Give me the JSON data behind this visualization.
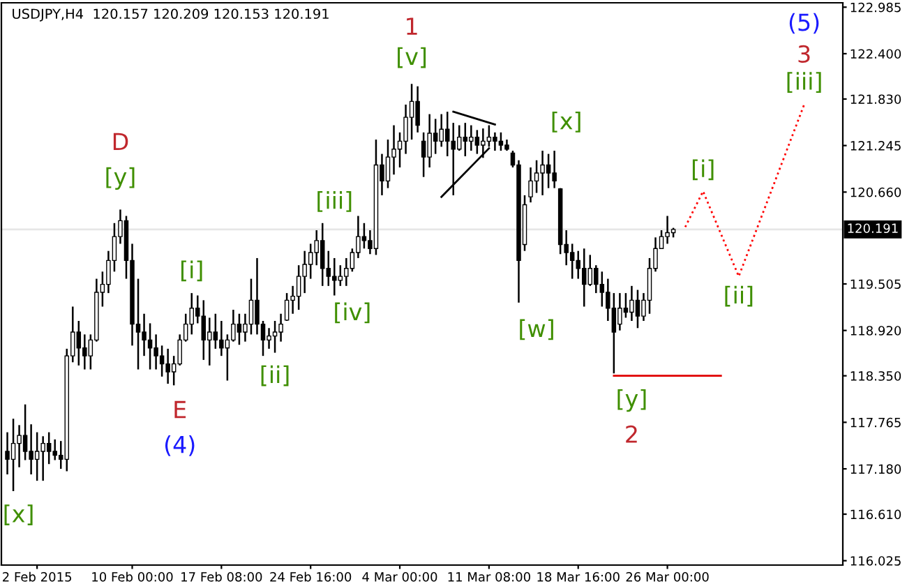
{
  "chart_data": {
    "type": "candlestick",
    "title": "USDJPY,H4  120.157 120.209 120.153 120.191",
    "categories": [
      null,
      null,
      null,
      null,
      null,
      "2 Feb 2015",
      null,
      null,
      null,
      null,
      null,
      null,
      null,
      null,
      null,
      null,
      null,
      null,
      null,
      null,
      null,
      "10 Feb 00:00",
      null,
      null,
      null,
      null,
      null,
      null,
      null,
      null,
      null,
      null,
      null,
      null,
      null,
      null,
      "17 Feb 08:00",
      null,
      null,
      null,
      null,
      null,
      null,
      null,
      null,
      null,
      null,
      null,
      null,
      null,
      null,
      "24 Feb 16:00",
      null,
      null,
      null,
      null,
      null,
      null,
      null,
      null,
      null,
      null,
      null,
      null,
      null,
      null,
      "4 Mar 00:00",
      null,
      null,
      null,
      null,
      null,
      null,
      null,
      null,
      null,
      null,
      null,
      null,
      null,
      null,
      "11 Mar 08:00",
      null,
      null,
      null,
      null,
      null,
      null,
      null,
      null,
      null,
      null,
      null,
      null,
      null,
      null,
      "18 Mar 16:00",
      null,
      null,
      null,
      null,
      null,
      null,
      null,
      null,
      null,
      null,
      null,
      null,
      null,
      null,
      "26 Mar 00:00",
      null,
      null,
      null,
      null,
      null,
      null,
      null,
      null,
      null,
      null,
      null,
      null,
      null,
      null,
      null,
      null,
      null,
      null,
      null,
      null,
      null,
      null,
      null,
      null,
      null,
      null,
      null,
      null,
      null
    ],
    "ohlc": [
      [
        117.4,
        117.64,
        117.11,
        117.3
      ],
      [
        117.3,
        117.81,
        116.9,
        117.5
      ],
      [
        117.5,
        117.73,
        117.2,
        117.6
      ],
      [
        117.6,
        117.99,
        117.29,
        117.4
      ],
      [
        117.4,
        117.74,
        117.11,
        117.3
      ],
      [
        117.3,
        117.64,
        117.03,
        117.4
      ],
      [
        117.4,
        117.59,
        117.03,
        117.5
      ],
      [
        117.5,
        117.64,
        117.24,
        117.4
      ],
      [
        117.4,
        117.55,
        117.29,
        117.35
      ],
      [
        117.35,
        117.53,
        117.18,
        117.3
      ],
      [
        117.3,
        118.69,
        117.15,
        118.6
      ],
      [
        118.6,
        119.22,
        118.52,
        118.9
      ],
      [
        118.9,
        119.04,
        118.48,
        118.7
      ],
      [
        118.7,
        118.87,
        118.43,
        118.6
      ],
      [
        118.6,
        118.87,
        118.43,
        118.8
      ],
      [
        118.8,
        119.57,
        118.78,
        119.4
      ],
      [
        119.4,
        119.66,
        119.22,
        119.5
      ],
      [
        119.5,
        119.92,
        119.39,
        119.8
      ],
      [
        119.8,
        120.27,
        119.66,
        120.1
      ],
      [
        120.1,
        120.44,
        120.01,
        120.3
      ],
      [
        120.3,
        120.36,
        119.57,
        119.8
      ],
      [
        119.8,
        120.01,
        118.73,
        119.0
      ],
      [
        119.0,
        119.57,
        118.43,
        118.9
      ],
      [
        118.9,
        119.13,
        118.6,
        118.8
      ],
      [
        118.8,
        119.01,
        118.43,
        118.7
      ],
      [
        118.7,
        118.87,
        118.43,
        118.6
      ],
      [
        118.6,
        118.73,
        118.34,
        118.5
      ],
      [
        118.5,
        118.69,
        118.25,
        118.4
      ],
      [
        118.4,
        118.6,
        118.23,
        118.5
      ],
      [
        118.5,
        118.87,
        118.48,
        118.8
      ],
      [
        118.8,
        119.13,
        118.78,
        119.0
      ],
      [
        119.0,
        119.39,
        118.87,
        119.2
      ],
      [
        119.2,
        119.36,
        119.01,
        119.1
      ],
      [
        119.1,
        119.3,
        118.55,
        118.8
      ],
      [
        118.8,
        119.08,
        118.48,
        118.9
      ],
      [
        118.9,
        119.13,
        118.69,
        118.8
      ],
      [
        118.8,
        119.04,
        118.6,
        118.7
      ],
      [
        118.7,
        118.87,
        118.29,
        118.8
      ],
      [
        118.8,
        119.18,
        118.78,
        119.0
      ],
      [
        119.0,
        119.13,
        118.74,
        118.9
      ],
      [
        118.9,
        119.13,
        118.78,
        119.0
      ],
      [
        119.0,
        119.57,
        118.87,
        119.3
      ],
      [
        119.3,
        119.83,
        118.87,
        119.0
      ],
      [
        119.0,
        119.04,
        118.6,
        118.8
      ],
      [
        118.8,
        118.95,
        118.69,
        118.85
      ],
      [
        118.85,
        119.04,
        118.64,
        118.9
      ],
      [
        118.9,
        119.13,
        118.78,
        119.0
      ],
      [
        119.05,
        119.39,
        119.04,
        119.3
      ],
      [
        119.3,
        119.48,
        119.13,
        119.35
      ],
      [
        119.35,
        119.74,
        119.18,
        119.6
      ],
      [
        119.6,
        119.92,
        119.39,
        119.75
      ],
      [
        119.75,
        120.01,
        119.57,
        119.9
      ],
      [
        119.9,
        120.18,
        119.74,
        120.05
      ],
      [
        120.05,
        120.27,
        119.48,
        119.7
      ],
      [
        119.7,
        119.92,
        119.48,
        119.6
      ],
      [
        119.6,
        119.83,
        119.36,
        119.55
      ],
      [
        119.55,
        119.74,
        119.48,
        119.6
      ],
      [
        119.6,
        119.83,
        119.48,
        119.7
      ],
      [
        119.7,
        119.95,
        119.66,
        119.9
      ],
      [
        119.9,
        120.36,
        119.83,
        120.1
      ],
      [
        120.1,
        120.27,
        119.95,
        120.05
      ],
      [
        120.05,
        120.18,
        119.88,
        119.95
      ],
      [
        119.95,
        121.32,
        119.87,
        121.0
      ],
      [
        121.0,
        121.14,
        120.62,
        120.8
      ],
      [
        120.8,
        121.32,
        120.71,
        121.1
      ],
      [
        121.1,
        121.5,
        120.88,
        121.2
      ],
      [
        121.2,
        121.41,
        120.97,
        121.3
      ],
      [
        121.3,
        121.76,
        121.14,
        121.6
      ],
      [
        121.6,
        122.02,
        121.32,
        121.8
      ],
      [
        121.8,
        121.99,
        121.41,
        121.5
      ],
      [
        121.3,
        121.41,
        120.85,
        121.1
      ],
      [
        121.1,
        121.64,
        120.97,
        121.4
      ],
      [
        121.4,
        121.58,
        121.14,
        121.3
      ],
      [
        121.3,
        121.64,
        121.23,
        121.45
      ],
      [
        121.45,
        121.67,
        121.11,
        121.3
      ],
      [
        121.3,
        121.53,
        120.62,
        121.2
      ],
      [
        121.2,
        121.5,
        121.18,
        121.35
      ],
      [
        121.35,
        121.53,
        121.11,
        121.3
      ],
      [
        121.3,
        121.5,
        121.18,
        121.35
      ],
      [
        121.35,
        121.44,
        121.14,
        121.25
      ],
      [
        121.25,
        121.46,
        121.09,
        121.3
      ],
      [
        121.3,
        121.5,
        121.23,
        121.35
      ],
      [
        121.35,
        121.41,
        121.18,
        121.3
      ],
      [
        121.3,
        121.41,
        121.18,
        121.25
      ],
      [
        121.25,
        121.32,
        121.18,
        121.2
      ],
      [
        121.15,
        121.18,
        120.97,
        121.0
      ],
      [
        121.0,
        121.06,
        119.27,
        119.8
      ],
      [
        120.0,
        120.62,
        119.92,
        120.5
      ],
      [
        120.6,
        120.97,
        120.53,
        120.8
      ],
      [
        120.8,
        121.06,
        120.65,
        120.9
      ],
      [
        120.9,
        121.18,
        120.62,
        121.0
      ],
      [
        121.0,
        121.14,
        120.71,
        120.9
      ],
      [
        120.9,
        121.18,
        120.71,
        120.8
      ],
      [
        120.7,
        120.71,
        119.88,
        120.0
      ],
      [
        120.0,
        120.18,
        119.74,
        119.9
      ],
      [
        119.9,
        120.01,
        119.57,
        119.8
      ],
      [
        119.8,
        119.92,
        119.57,
        119.7
      ],
      [
        119.7,
        119.95,
        119.22,
        119.5
      ],
      [
        119.5,
        119.87,
        119.48,
        119.7
      ],
      [
        119.7,
        119.74,
        119.39,
        119.5
      ],
      [
        119.5,
        119.66,
        119.22,
        119.4
      ],
      [
        119.4,
        119.57,
        119.04,
        119.2
      ],
      [
        119.2,
        119.39,
        118.38,
        118.9
      ],
      [
        119.0,
        119.39,
        118.92,
        119.2
      ],
      [
        119.2,
        119.39,
        119.08,
        119.15
      ],
      [
        119.15,
        119.48,
        119.04,
        119.3
      ],
      [
        119.3,
        119.43,
        118.95,
        119.1
      ],
      [
        119.1,
        119.39,
        119.04,
        119.3
      ],
      [
        119.3,
        119.83,
        119.13,
        119.7
      ],
      [
        119.7,
        120.09,
        119.66,
        119.95
      ],
      [
        119.95,
        120.18,
        119.95,
        120.1
      ],
      [
        120.1,
        120.36,
        120.01,
        120.15
      ],
      [
        120.15,
        120.21,
        120.09,
        120.19
      ],
      null,
      null,
      null,
      null,
      null,
      null,
      null,
      null,
      null,
      null,
      null,
      null,
      null,
      null,
      null,
      null,
      null,
      null,
      null,
      null,
      null,
      null,
      null,
      null,
      null,
      null,
      null,
      null
    ],
    "series": [
      {
        "type": "line",
        "color": "#ff0000",
        "line_style": "dotted",
        "values": [
          null,
          null,
          null,
          null,
          null,
          null,
          null,
          null,
          null,
          null,
          null,
          null,
          null,
          null,
          null,
          null,
          null,
          null,
          null,
          null,
          null,
          null,
          null,
          null,
          null,
          null,
          null,
          null,
          null,
          null,
          null,
          null,
          null,
          null,
          null,
          null,
          null,
          null,
          null,
          null,
          null,
          null,
          null,
          null,
          null,
          null,
          null,
          null,
          null,
          null,
          null,
          null,
          null,
          null,
          null,
          null,
          null,
          null,
          null,
          null,
          null,
          null,
          null,
          null,
          null,
          null,
          null,
          null,
          null,
          null,
          null,
          null,
          null,
          null,
          null,
          null,
          null,
          null,
          null,
          null,
          null,
          null,
          null,
          null,
          null,
          null,
          null,
          null,
          null,
          null,
          null,
          null,
          null,
          null,
          null,
          null,
          null,
          null,
          null,
          null,
          null,
          null,
          null,
          null,
          null,
          null,
          null,
          null,
          null,
          null,
          null,
          null,
          null,
          null,
          120.22,
          null,
          null,
          120.67,
          null,
          null,
          null,
          null,
          null,
          119.6,
          null,
          null,
          null,
          null,
          null,
          null,
          null,
          null,
          null,
          null,
          121.76,
          null,
          null,
          null,
          null,
          null,
          null
        ]
      },
      {
        "type": "line",
        "color": "#000000",
        "line_style": "solid",
        "values": [
          null,
          null,
          null,
          null,
          null,
          null,
          null,
          null,
          null,
          null,
          null,
          null,
          null,
          null,
          null,
          null,
          null,
          null,
          null,
          null,
          null,
          null,
          null,
          null,
          null,
          null,
          null,
          null,
          null,
          null,
          null,
          null,
          null,
          null,
          null,
          null,
          null,
          null,
          null,
          null,
          null,
          null,
          null,
          null,
          null,
          null,
          null,
          null,
          null,
          null,
          null,
          null,
          null,
          null,
          null,
          null,
          null,
          null,
          null,
          null,
          null,
          null,
          null,
          null,
          null,
          null,
          null,
          null,
          null,
          null,
          null,
          null,
          null,
          null,
          null,
          121.67,
          null,
          null,
          null,
          null,
          null,
          null,
          121.51,
          null,
          null,
          null,
          null,
          null,
          null,
          null,
          null,
          null,
          null,
          null,
          null,
          null,
          null,
          null,
          null,
          null,
          null,
          null,
          null,
          null,
          null,
          null,
          null,
          null,
          null,
          null,
          null,
          null,
          null,
          null,
          null,
          null,
          null,
          null,
          null,
          null,
          null,
          null,
          null,
          null,
          null,
          null,
          null,
          null,
          null,
          null,
          null,
          null,
          null,
          null,
          null,
          null,
          null,
          null,
          null,
          null,
          null
        ]
      },
      {
        "type": "line",
        "color": "#000000",
        "line_style": "solid",
        "values": [
          null,
          null,
          null,
          null,
          null,
          null,
          null,
          null,
          null,
          null,
          null,
          null,
          null,
          null,
          null,
          null,
          null,
          null,
          null,
          null,
          null,
          null,
          null,
          null,
          null,
          null,
          null,
          null,
          null,
          null,
          null,
          null,
          null,
          null,
          null,
          null,
          null,
          null,
          null,
          null,
          null,
          null,
          null,
          null,
          null,
          null,
          null,
          null,
          null,
          null,
          null,
          null,
          null,
          null,
          null,
          null,
          null,
          null,
          null,
          null,
          null,
          null,
          null,
          null,
          null,
          null,
          null,
          null,
          null,
          null,
          null,
          null,
          null,
          120.6,
          null,
          null,
          null,
          null,
          null,
          null,
          null,
          121.21,
          null,
          null,
          null,
          null,
          null,
          null,
          null,
          null,
          null,
          null,
          null,
          null,
          null,
          null,
          null,
          null,
          null,
          null,
          null,
          null,
          null,
          null,
          null,
          null,
          null,
          null,
          null,
          null,
          null,
          null,
          null,
          null,
          null,
          null,
          null,
          null,
          null,
          null,
          null,
          null,
          null,
          null,
          null,
          null,
          null,
          null,
          null,
          null,
          null,
          null,
          null,
          null,
          null,
          null,
          null,
          null,
          null,
          null,
          null
        ]
      },
      {
        "type": "line",
        "color": "#e00000",
        "line_style": "solid",
        "values": [
          null,
          null,
          null,
          null,
          null,
          null,
          null,
          null,
          null,
          null,
          null,
          null,
          null,
          null,
          null,
          null,
          null,
          null,
          null,
          null,
          null,
          null,
          null,
          null,
          null,
          null,
          null,
          null,
          null,
          null,
          null,
          null,
          null,
          null,
          null,
          null,
          null,
          null,
          null,
          null,
          null,
          null,
          null,
          null,
          null,
          null,
          null,
          null,
          null,
          null,
          null,
          null,
          null,
          null,
          null,
          null,
          null,
          null,
          null,
          null,
          null,
          null,
          null,
          null,
          null,
          null,
          null,
          null,
          null,
          null,
          null,
          null,
          null,
          null,
          null,
          null,
          null,
          null,
          null,
          null,
          null,
          null,
          null,
          null,
          null,
          null,
          null,
          null,
          null,
          null,
          null,
          null,
          null,
          null,
          null,
          null,
          null,
          null,
          null,
          null,
          null,
          null,
          118.35,
          null,
          null,
          null,
          null,
          null,
          null,
          null,
          null,
          null,
          null,
          null,
          null,
          null,
          null,
          null,
          null,
          null,
          118.35,
          null,
          null,
          null,
          null,
          null,
          null,
          null,
          null,
          null,
          null,
          null,
          null,
          null,
          null,
          null,
          null,
          null,
          null,
          null,
          null
        ]
      }
    ],
    "ylim": [
      115.97,
      123.04
    ],
    "yticks": [
      {
        "value": 116.025,
        "label": "116.025"
      },
      {
        "value": 116.61,
        "label": "116.610"
      },
      {
        "value": 117.18,
        "label": "117.180"
      },
      {
        "value": 117.765,
        "label": "117.765"
      },
      {
        "value": 118.35,
        "label": "118.350"
      },
      {
        "value": 118.92,
        "label": "118.920"
      },
      {
        "value": 119.505,
        "label": "119.505"
      },
      {
        "value": 120.66,
        "label": "120.660"
      },
      {
        "value": 121.245,
        "label": "121.245"
      },
      {
        "value": 121.83,
        "label": "121.830"
      },
      {
        "value": 122.4,
        "label": "122.400"
      },
      {
        "value": 122.985,
        "label": "122.985"
      }
    ],
    "ref_lines": [
      {
        "axis": "y",
        "value": 120.191,
        "label": "120.191",
        "color": "#e6e6e6"
      }
    ],
    "annotations": [
      "[v]",
      "1",
      "[y]",
      "D",
      {
        "text": "[i]",
        "y": 119.39
      },
      "E",
      "(4)",
      "[ii]",
      "[iii]",
      "[iv]",
      "[x]",
      "[w]",
      "[x]",
      "[y]",
      "2",
      "[i]",
      "[ii]",
      {
        "text": "[iii]",
        "y": 121.76
      },
      "3",
      "(5)"
    ]
  }
}
